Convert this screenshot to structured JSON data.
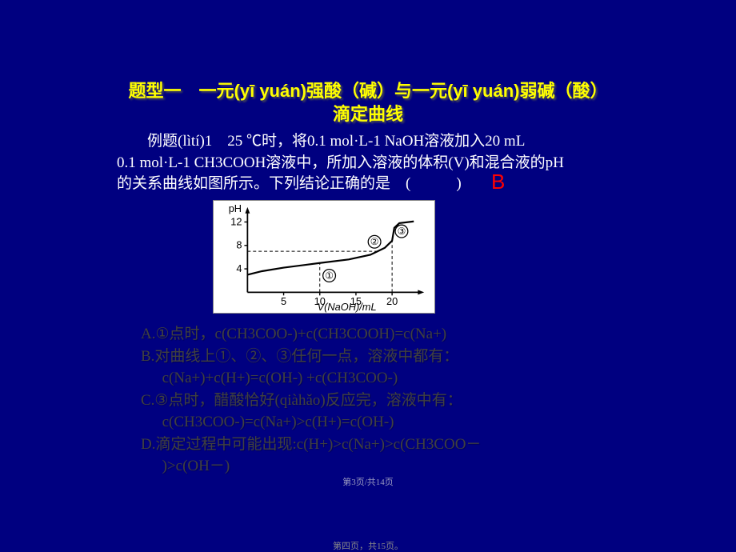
{
  "title": "题型一　一元(yī yuán)强酸（碱）与一元(yī yuán)弱碱（酸）滴定曲线",
  "problem": {
    "line1": "例题(lìtí)1　25 ℃时，将0.1 mol·L-1 NaOH溶液加入20 mL",
    "line2": "0.1 mol·L-1 CH3COOH溶液中，所加入溶液的体积(V)和混合液的pH",
    "line3": "的关系曲线如图所示。下列结论正确的是　(　　　)"
  },
  "answer": "B",
  "chart": {
    "background": "#ffffff",
    "axis_color": "#000000",
    "curve_color": "#000000",
    "ylabel": "pH",
    "xlabel": "V(NaOH)/mL",
    "yticks": [
      4,
      8,
      12
    ],
    "xticks": [
      5,
      10,
      15,
      20
    ],
    "ylim": [
      0,
      14
    ],
    "xlim": [
      0,
      24
    ],
    "markers": [
      {
        "id": "①",
        "x": 10,
        "y": 5.0
      },
      {
        "id": "②",
        "x": 18,
        "y": 7.0
      },
      {
        "id": "③",
        "x": 20,
        "y": 8.8
      }
    ],
    "curve_points": [
      {
        "x": 0,
        "y": 3.0
      },
      {
        "x": 2,
        "y": 3.6
      },
      {
        "x": 5,
        "y": 4.2
      },
      {
        "x": 10,
        "y": 5.0
      },
      {
        "x": 14,
        "y": 5.6
      },
      {
        "x": 17,
        "y": 6.4
      },
      {
        "x": 18,
        "y": 7.0
      },
      {
        "x": 19,
        "y": 7.6
      },
      {
        "x": 20,
        "y": 8.8
      },
      {
        "x": 20.3,
        "y": 11.0
      },
      {
        "x": 21,
        "y": 11.8
      },
      {
        "x": 23,
        "y": 12.1
      }
    ]
  },
  "options": {
    "A": "A.①点时，c(CH3COO-)+c(CH3COOH)=c(Na+)",
    "B1": "B.对曲线上①、②、③任何一点，溶液中都有：",
    "B2": "c(Na+)+c(H+)=c(OH-)  +c(CH3COO-)",
    "C1": "C.③点时，醋酸恰好(qiàhǎo)反应完，溶液中有：",
    "C2": "c(CH3COO-)=c(Na+)>c(H+)=c(OH-)",
    "D1": "D.滴定过程中可能出现:c(H+)>c(Na+)>c(CH3COO－",
    "D2": ")>c(OH－)"
  },
  "page_mid": "第3页/共14页",
  "page_bot": "第四页，共15页。",
  "colors": {
    "bg": "#000080",
    "title": "#ffff00",
    "body_text": "#ffffff",
    "option_text": "#404040",
    "answer": "#ff0000"
  }
}
